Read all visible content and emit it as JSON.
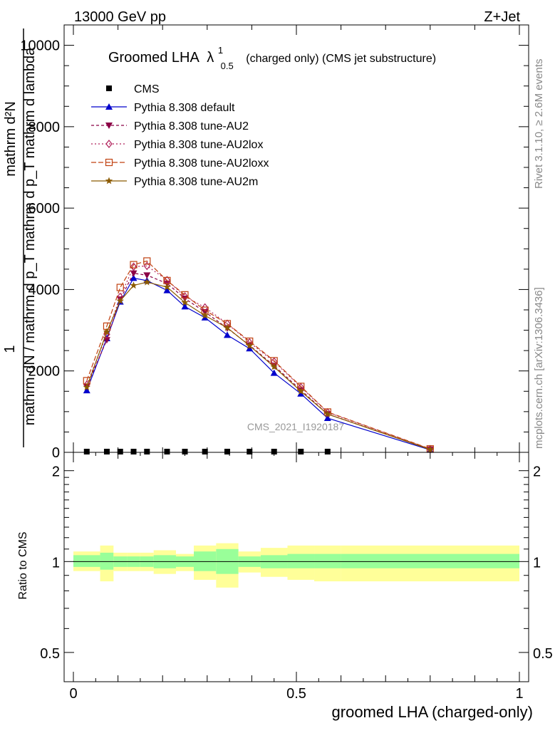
{
  "header": {
    "left": "13000 GeV pp",
    "right": "Z+Jet"
  },
  "title": {
    "main": "Groomed LHA",
    "symbol": "λ",
    "sup": "1",
    "sub": "0.5",
    "suffix": "(charged only) (CMS jet substructure)"
  },
  "side": {
    "rivet": "Rivet 3.1.10, ≥ 2.6M events",
    "mcplots": "mcplots.cern.ch [arXiv:1306.3436]"
  },
  "watermark": "CMS_2021_I1920187",
  "ylabel_top": {
    "one": "1",
    "numerator": "mathrm d²N",
    "denominator": "mathrm dN / mathrm d p_T mathrm d p_T mathrm d lambda"
  },
  "ylabel_ratio": "Ratio to CMS",
  "xlabel": "groomed LHA (charged-only)",
  "chart_data": [
    {
      "type": "line",
      "panel": "main",
      "ylim": [
        0,
        10500
      ],
      "xlim": [
        -0.02,
        1.02
      ],
      "yticks": [
        0,
        2000,
        4000,
        6000,
        8000,
        10000
      ],
      "ytick_labels": [
        "0",
        "2000",
        "4000",
        "6000",
        "8000",
        "10000"
      ],
      "x": [
        0.03,
        0.075,
        0.105,
        0.135,
        0.165,
        0.21,
        0.25,
        0.295,
        0.345,
        0.395,
        0.45,
        0.51,
        0.57,
        0.8
      ],
      "series": [
        {
          "name": "CMS",
          "color": "#000000",
          "marker": "square",
          "values": [
            0,
            0,
            0,
            0,
            0,
            0,
            0,
            0,
            0,
            0,
            0,
            0,
            0,
            null
          ]
        },
        {
          "name": "Pythia 8.308 default",
          "color": "#0000cc",
          "marker": "triangle-up",
          "dash": "",
          "values": [
            1520,
            2800,
            3700,
            4280,
            4220,
            3980,
            3580,
            3310,
            2880,
            2550,
            1950,
            1440,
            840,
            60
          ]
        },
        {
          "name": "Pythia 8.308 tune-AU2",
          "color": "#8b0045",
          "marker": "triangle-down",
          "dash": "4,3",
          "values": [
            1620,
            2760,
            3760,
            4400,
            4350,
            4150,
            3780,
            3450,
            3050,
            2630,
            2130,
            1530,
            940,
            75
          ]
        },
        {
          "name": "Pythia 8.308 tune-AU2lox",
          "color": "#b0205a",
          "marker": "diamond",
          "dash": "2,3",
          "values": [
            1660,
            2900,
            3820,
            4560,
            4580,
            4230,
            3830,
            3560,
            3160,
            2700,
            2230,
            1600,
            980,
            80
          ]
        },
        {
          "name": "Pythia 8.308 tune-AU2loxx",
          "color": "#c04010",
          "marker": "square-open",
          "dash": "7,3",
          "values": [
            1760,
            3100,
            4050,
            4610,
            4700,
            4220,
            3870,
            3490,
            3160,
            2730,
            2250,
            1620,
            990,
            85
          ]
        },
        {
          "name": "Pythia 8.308 tune-AU2m",
          "color": "#8b5a00",
          "marker": "star",
          "dash": "",
          "values": [
            1600,
            2960,
            3720,
            4100,
            4180,
            4060,
            3680,
            3360,
            3060,
            2620,
            2100,
            1500,
            940,
            70
          ]
        }
      ]
    },
    {
      "type": "area",
      "panel": "ratio",
      "ylim": [
        0.4,
        2.3
      ],
      "ytick_labels": [
        "0.5",
        "1",
        "2"
      ],
      "yticks": [
        0.5,
        1,
        2
      ],
      "xticks": [
        0,
        0.5,
        1
      ],
      "xtick_labels": [
        "0",
        "0.5",
        "1"
      ],
      "bins": [
        0,
        0.06,
        0.09,
        0.12,
        0.15,
        0.18,
        0.23,
        0.27,
        0.32,
        0.37,
        0.42,
        0.48,
        0.54,
        0.6,
        1.0
      ],
      "band_inner": [
        [
          0.96,
          1.05
        ],
        [
          0.94,
          1.07
        ],
        [
          0.96,
          1.04
        ],
        [
          0.96,
          1.04
        ],
        [
          0.96,
          1.04
        ],
        [
          0.95,
          1.05
        ],
        [
          0.96,
          1.04
        ],
        [
          0.93,
          1.08
        ],
        [
          0.91,
          1.1
        ],
        [
          0.96,
          1.04
        ],
        [
          0.95,
          1.05
        ],
        [
          0.95,
          1.06
        ],
        [
          0.95,
          1.06
        ],
        [
          0.95,
          1.06
        ]
      ],
      "band_outer": [
        [
          0.93,
          1.08
        ],
        [
          0.86,
          1.13
        ],
        [
          0.93,
          1.07
        ],
        [
          0.93,
          1.07
        ],
        [
          0.93,
          1.07
        ],
        [
          0.91,
          1.09
        ],
        [
          0.93,
          1.06
        ],
        [
          0.87,
          1.13
        ],
        [
          0.82,
          1.15
        ],
        [
          0.92,
          1.08
        ],
        [
          0.89,
          1.11
        ],
        [
          0.87,
          1.13
        ],
        [
          0.86,
          1.13
        ],
        [
          0.86,
          1.13
        ]
      ],
      "band_colors": {
        "inner": "#99ff99",
        "outer": "#ffff99"
      },
      "reference_line": 1
    }
  ]
}
